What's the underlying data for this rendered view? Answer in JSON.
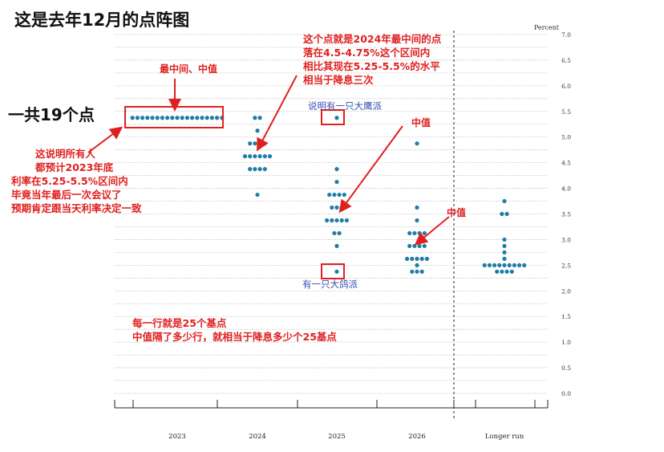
{
  "header": {
    "title": "这是去年12月的点阵图"
  },
  "chart_data": {
    "type": "scatter",
    "title": "",
    "ylabel": "Percent",
    "xlabel": "",
    "categories": [
      "2023",
      "2024",
      "2025",
      "2026",
      "Longer run"
    ],
    "y_ticks": [
      "0.0",
      "0.5",
      "1.0",
      "1.5",
      "2.0",
      "2.5",
      "3.0",
      "3.5",
      "4.0",
      "4.5",
      "5.0",
      "5.5",
      "6.0",
      "6.5",
      "7.0"
    ],
    "ylim": [
      0,
      7.0
    ],
    "grid": "dotted horizontal lines every 0.25, solid every 0.5",
    "dot_color": "#1f7ea5",
    "series": [
      {
        "category": "2023",
        "points": [
          {
            "y": 5.375,
            "count": 19
          }
        ]
      },
      {
        "category": "2024",
        "points": [
          {
            "y": 5.375,
            "count": 2
          },
          {
            "y": 5.125,
            "count": 1
          },
          {
            "y": 4.875,
            "count": 4
          },
          {
            "y": 4.625,
            "count": 6
          },
          {
            "y": 4.375,
            "count": 4
          },
          {
            "y": 3.875,
            "count": 1
          }
        ]
      },
      {
        "category": "2025",
        "points": [
          {
            "y": 5.375,
            "count": 1
          },
          {
            "y": 4.375,
            "count": 1
          },
          {
            "y": 4.125,
            "count": 1
          },
          {
            "y": 3.875,
            "count": 4
          },
          {
            "y": 3.625,
            "count": 3
          },
          {
            "y": 3.375,
            "count": 5
          },
          {
            "y": 3.125,
            "count": 2
          },
          {
            "y": 2.875,
            "count": 1
          },
          {
            "y": 2.375,
            "count": 1
          }
        ]
      },
      {
        "category": "2026",
        "points": [
          {
            "y": 4.875,
            "count": 1
          },
          {
            "y": 3.625,
            "count": 1
          },
          {
            "y": 3.375,
            "count": 1
          },
          {
            "y": 3.125,
            "count": 4
          },
          {
            "y": 2.875,
            "count": 4
          },
          {
            "y": 2.625,
            "count": 5
          },
          {
            "y": 2.5,
            "count": 1
          },
          {
            "y": 2.375,
            "count": 3
          }
        ]
      },
      {
        "category": "Longer run",
        "points": [
          {
            "y": 3.75,
            "count": 1
          },
          {
            "y": 3.5,
            "count": 2
          },
          {
            "y": 3.0,
            "count": 1
          },
          {
            "y": 2.875,
            "count": 1
          },
          {
            "y": 2.75,
            "count": 1
          },
          {
            "y": 2.625,
            "count": 1
          },
          {
            "y": 2.5,
            "count": 9
          },
          {
            "y": 2.375,
            "count": 4
          }
        ]
      }
    ],
    "annotation_color_red": "#e02020",
    "annotation_color_blue": "#3a4fb0",
    "annotations": {
      "total_dots": "一共19个点",
      "median_center": "最中间、中值",
      "all_members": [
        "这说明所有人",
        "都预计2023年底",
        "利率在5.25-5.5%区间内",
        "毕竟当年最后一次会议了",
        "预期肯定跟当天利率决定一致"
      ],
      "dot_2024": [
        "这个点就是2024年最中间的点",
        "落在4.5-4.75%这个区间内",
        "相比其现在5.25-5.5%的水平",
        "相当于降息三次"
      ],
      "hawk": "说明有一只大鹰派",
      "median_2025": "中值",
      "median_2026": "中值",
      "dove": "有一只大鸽派",
      "rows": [
        "每一行就是25个基点",
        "中值隔了多少行，就相当于降息多少个25基点"
      ]
    }
  }
}
